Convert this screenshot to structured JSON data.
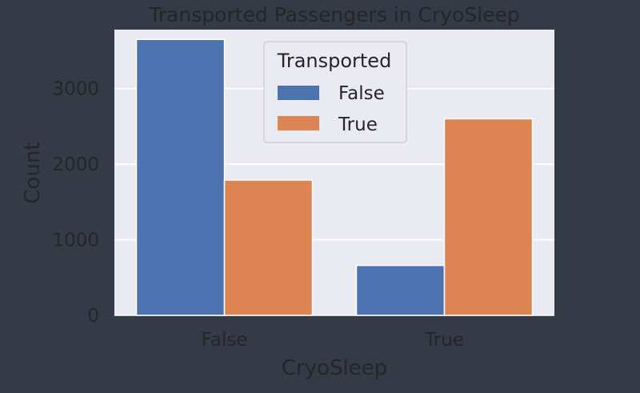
{
  "chart_data": {
    "type": "bar",
    "title": "Transported Passengers in CryoSleep",
    "xlabel": "CryoSleep",
    "ylabel": "Count",
    "categories": [
      "False",
      "True"
    ],
    "series": [
      {
        "name": "False",
        "color": "#4c72b0",
        "values": [
          3650,
          660
        ]
      },
      {
        "name": "True",
        "color": "#dd8452",
        "values": [
          1790,
          2600
        ]
      }
    ],
    "ylim": [
      0,
      3780
    ],
    "yticks": [
      0,
      1000,
      2000,
      3000
    ],
    "grid": true,
    "legend": {
      "title": "Transported",
      "placement": "upper-center"
    }
  },
  "colors": {
    "background": "#343a46",
    "plot_background": "#eaeaf2",
    "grid": "#ffffff",
    "text": "#262626"
  }
}
